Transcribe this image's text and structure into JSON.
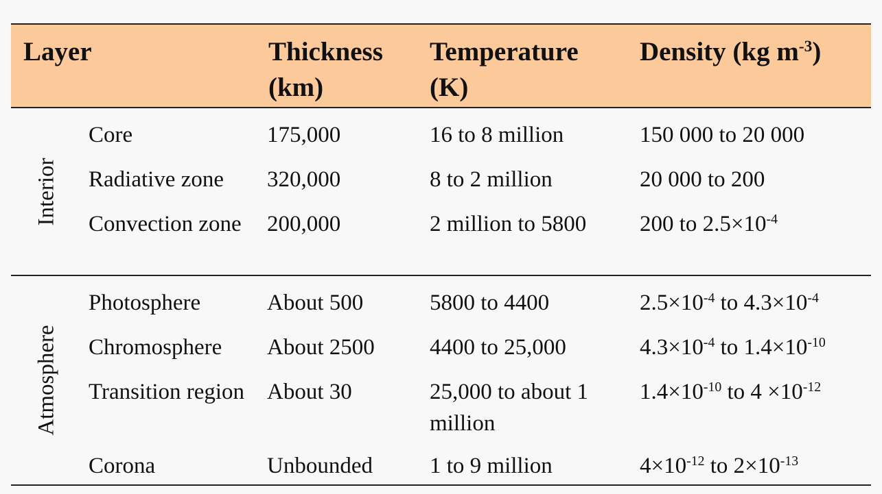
{
  "headers": {
    "layer": "Layer",
    "thickness": "Thickness (km)",
    "temperature": "Temperature (K)",
    "density": {
      "base": "Density (kg m",
      "exp": "-3",
      "close": ")"
    }
  },
  "groups": [
    {
      "label": "Interior",
      "rows": [
        {
          "name": "Core",
          "thickness": "175,000",
          "temperature": "16 to 8 million",
          "density": [
            {
              "t": "150 000 to 20 000"
            }
          ]
        },
        {
          "name": "Radiative zone",
          "thickness": "320,000",
          "temperature": "8 to 2 million",
          "density": [
            {
              "t": "20 000 to 200"
            }
          ]
        },
        {
          "name": "Convection zone",
          "thickness": "200,000",
          "temperature": "2 million to 5800",
          "density": [
            {
              "t": "200 to 2.5×10"
            },
            {
              "sup": "-4"
            }
          ]
        }
      ]
    },
    {
      "label": "Atmosphere",
      "rows": [
        {
          "name": "Photosphere",
          "thickness": "About 500",
          "temperature": "5800 to 4400",
          "density": [
            {
              "t": "2.5×10"
            },
            {
              "sup": "-4"
            },
            {
              "t": " to 4.3×10"
            },
            {
              "sup": "-4"
            }
          ]
        },
        {
          "name": "Chromosphere",
          "thickness": "About 2500",
          "temperature": "4400 to 25,000",
          "density": [
            {
              "t": "4.3×10"
            },
            {
              "sup": "-4"
            },
            {
              "t": " to 1.4×10"
            },
            {
              "sup": "-10"
            }
          ]
        },
        {
          "name": "Transition region",
          "thickness": "About 30",
          "temperature": "25,000 to about 1 million",
          "density": [
            {
              "t": "1.4×10"
            },
            {
              "sup": "-10"
            },
            {
              "t": " to 4 ×10"
            },
            {
              "sup": "-12"
            }
          ]
        },
        {
          "name": "Corona",
          "thickness": "Unbounded",
          "temperature": "1 to 9 million",
          "density": [
            {
              "t": "4×10"
            },
            {
              "sup": "-12"
            },
            {
              "t": " to 2×10"
            },
            {
              "sup": "-13"
            }
          ]
        }
      ]
    }
  ]
}
